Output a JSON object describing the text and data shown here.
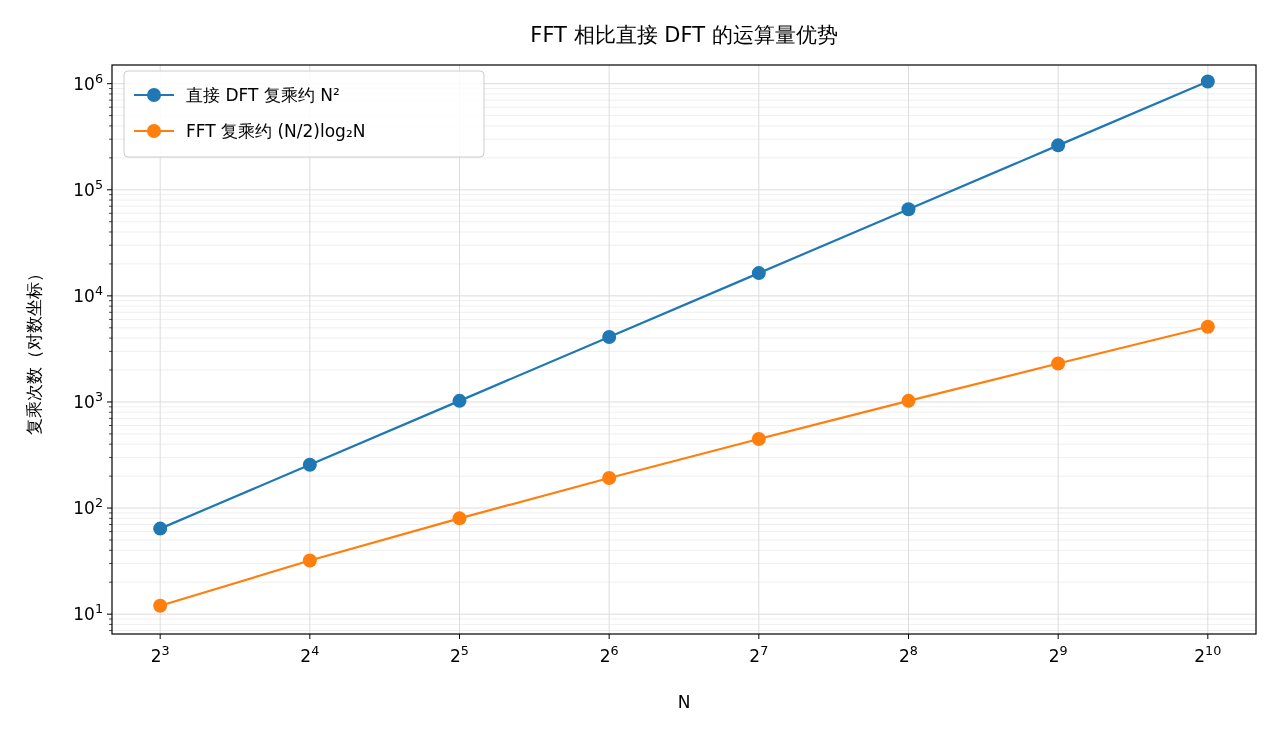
{
  "chart_data": {
    "type": "line",
    "title": "FFT 相比直接 DFT 的运算量优势",
    "xlabel": "N",
    "ylabel": "复乘次数（对数坐标）",
    "x": [
      8,
      16,
      32,
      64,
      128,
      256,
      512,
      1024
    ],
    "series": [
      {
        "name": "直接 DFT 复乘约 N²",
        "color": "#1f77b4",
        "values": [
          64,
          256,
          1024,
          4096,
          16384,
          65536,
          262144,
          1048576
        ]
      },
      {
        "name": "FFT 复乘约 (N/2)log₂N",
        "color": "#ff7f0e",
        "values": [
          12,
          32,
          80,
          192,
          448,
          1024,
          2304,
          5120
        ]
      }
    ],
    "log": "xy",
    "xlim": [
      6.4,
      1280
    ],
    "ylim": [
      6.5,
      1500000
    ],
    "xticks": [
      {
        "value": 8,
        "label": "2$^{3}$"
      },
      {
        "value": 16,
        "label": "2$^{4}$"
      },
      {
        "value": 32,
        "label": "2$^{5}$"
      },
      {
        "value": 64,
        "label": "2$^{6}$"
      },
      {
        "value": 128,
        "label": "2$^{7}$"
      },
      {
        "value": 256,
        "label": "2$^{8}$"
      },
      {
        "value": 512,
        "label": "2$^{9}$"
      },
      {
        "value": 1024,
        "label": "2$^{10}$"
      }
    ],
    "yticks": [
      {
        "value": 10,
        "label": "10$^{1}$"
      },
      {
        "value": 100,
        "label": "10$^{2}$"
      },
      {
        "value": 1000,
        "label": "10$^{3}$"
      },
      {
        "value": 10000,
        "label": "10$^{4}$"
      },
      {
        "value": 100000,
        "label": "10$^{5}$"
      },
      {
        "value": 1000000,
        "label": "10$^{6}$"
      }
    ],
    "grid": true,
    "legend": "top left",
    "marker": "circle",
    "line_style": "solid"
  }
}
